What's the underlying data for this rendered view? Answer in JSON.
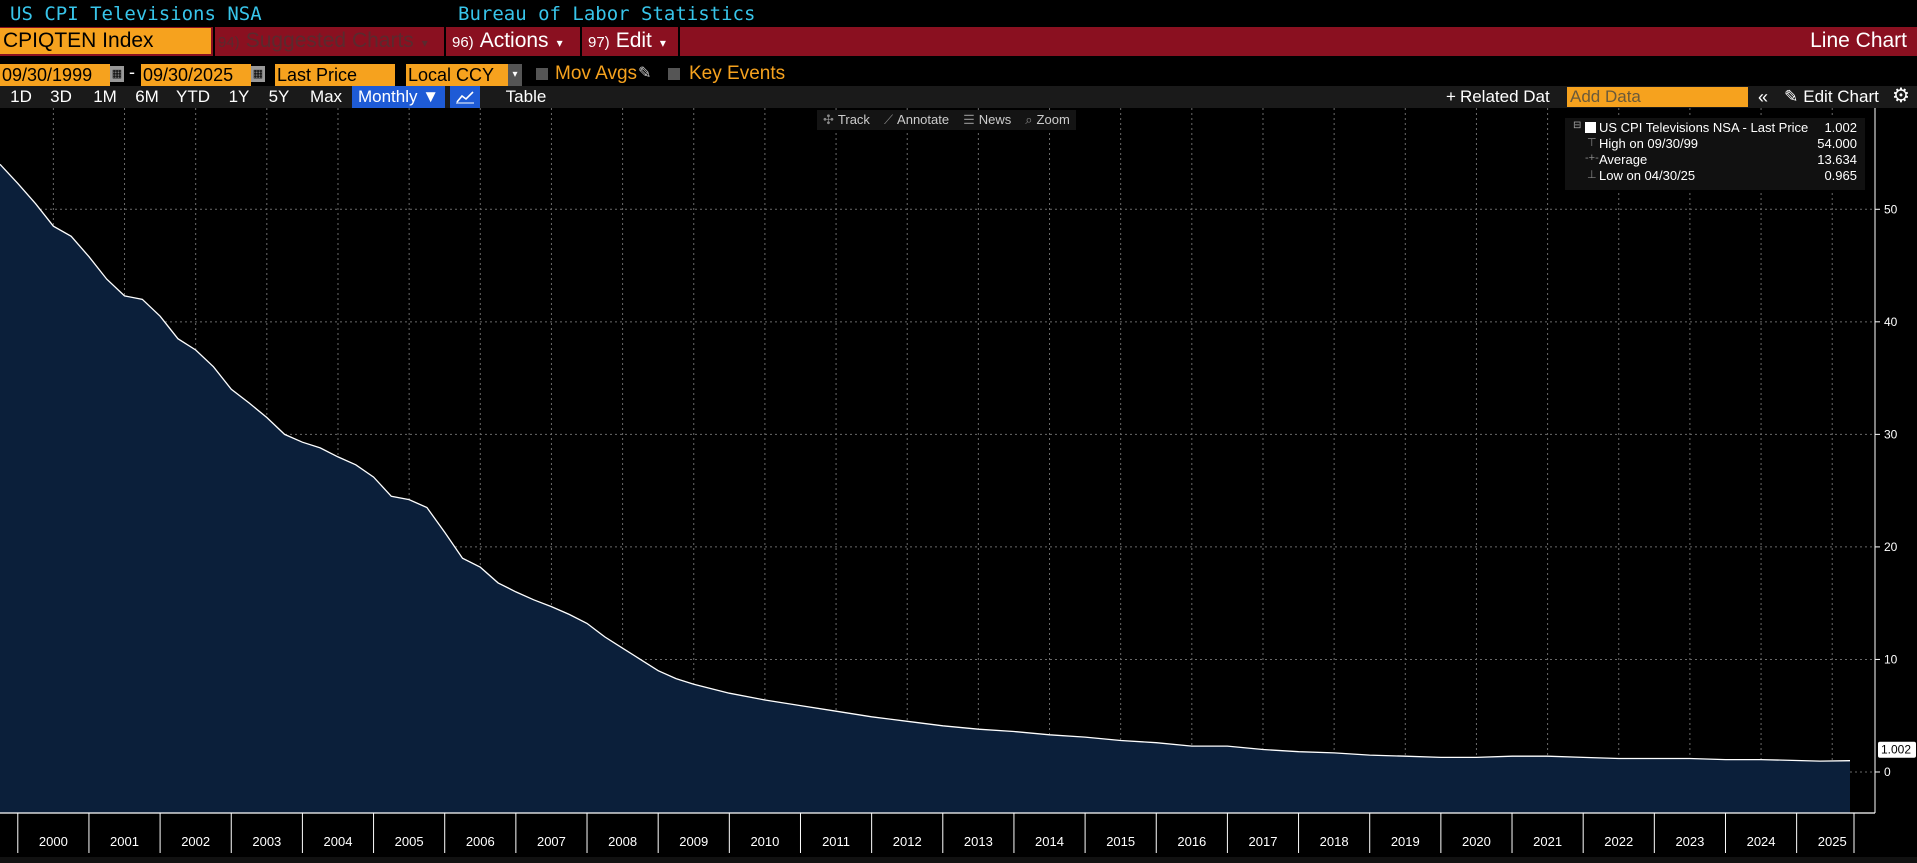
{
  "header": {
    "security_name": "US CPI Televisions NSA",
    "source": "Bureau of Labor Statistics"
  },
  "menubar": {
    "ticker": "CPIQTEN Index",
    "suggested_num": "94)",
    "suggested_label": "Suggested Charts",
    "actions_num": "96)",
    "actions_label": "Actions",
    "edit_num": "97)",
    "edit_label": "Edit",
    "chart_type": "Line Chart"
  },
  "options": {
    "start_date": "09/30/1999",
    "date_separator": "-",
    "end_date": "09/30/2025",
    "field": "Last Price",
    "currency": "Local CCY",
    "mov_avgs": "Mov Avgs",
    "key_events": "Key Events"
  },
  "periods": [
    "1D",
    "3D",
    "1M",
    "6M",
    "YTD",
    "1Y",
    "5Y",
    "Max"
  ],
  "frequency": "Monthly ▼",
  "table_label": "Table",
  "related_label": "Related Dat",
  "add_data_placeholder": "Add Data",
  "edit_chart_label": "Edit Chart",
  "tools": {
    "track": "Track",
    "annotate": "Annotate",
    "news": "News",
    "zoom": "Zoom"
  },
  "legend": {
    "series_label": "US CPI Televisions NSA - Last Price",
    "series_value": "1.002",
    "high_label": "High on 09/30/99",
    "high_value": "54.000",
    "avg_label": "Average",
    "avg_value": "13.634",
    "low_label": "Low on 04/30/25",
    "low_value": "0.965"
  },
  "chart_data": {
    "type": "area",
    "line_color": "#ffffff",
    "fill_color": "#0b1f3a",
    "ylim": [
      -4,
      59
    ],
    "yticks": [
      0,
      10,
      20,
      30,
      40,
      50
    ],
    "x_start": 1999.75,
    "x_end": 2025.75,
    "xticks": [
      "2000",
      "2001",
      "2002",
      "2003",
      "2004",
      "2005",
      "2006",
      "2007",
      "2008",
      "2009",
      "2010",
      "2011",
      "2012",
      "2013",
      "2014",
      "2015",
      "2016",
      "2017",
      "2018",
      "2019",
      "2020",
      "2021",
      "2022",
      "2023",
      "2024",
      "2025"
    ],
    "last_value_label": "1.002",
    "x": [
      1999.75,
      2000.0,
      2000.25,
      2000.5,
      2000.75,
      2001.0,
      2001.25,
      2001.5,
      2001.75,
      2002.0,
      2002.25,
      2002.5,
      2002.75,
      2003.0,
      2003.25,
      2003.5,
      2003.75,
      2004.0,
      2004.25,
      2004.5,
      2004.75,
      2005.0,
      2005.25,
      2005.5,
      2005.75,
      2006.0,
      2006.25,
      2006.5,
      2006.75,
      2007.0,
      2007.25,
      2007.5,
      2007.75,
      2008.0,
      2008.25,
      2008.5,
      2008.75,
      2009.0,
      2009.25,
      2009.5,
      2009.75,
      2010.0,
      2010.5,
      2011.0,
      2011.5,
      2012.0,
      2012.5,
      2013.0,
      2013.5,
      2014.0,
      2014.5,
      2015.0,
      2015.5,
      2016.0,
      2016.5,
      2017.0,
      2017.5,
      2018.0,
      2018.5,
      2019.0,
      2019.5,
      2020.0,
      2020.5,
      2021.0,
      2021.5,
      2022.0,
      2022.5,
      2023.0,
      2023.5,
      2024.0,
      2024.5,
      2025.0,
      2025.33,
      2025.75
    ],
    "y": [
      54.0,
      52.3,
      50.5,
      48.5,
      47.6,
      45.8,
      43.8,
      42.3,
      42.0,
      40.5,
      38.5,
      37.5,
      36.0,
      34.0,
      32.8,
      31.5,
      30.0,
      29.3,
      28.8,
      28.0,
      27.3,
      26.2,
      24.5,
      24.2,
      23.5,
      21.3,
      19.0,
      18.2,
      16.8,
      16.0,
      15.3,
      14.7,
      14.0,
      13.2,
      12.0,
      11.0,
      10.0,
      9.0,
      8.3,
      7.8,
      7.4,
      7.0,
      6.4,
      5.9,
      5.4,
      4.9,
      4.5,
      4.1,
      3.8,
      3.6,
      3.3,
      3.1,
      2.8,
      2.6,
      2.3,
      2.3,
      2.0,
      1.8,
      1.7,
      1.5,
      1.4,
      1.3,
      1.3,
      1.4,
      1.4,
      1.3,
      1.2,
      1.2,
      1.2,
      1.1,
      1.1,
      1.02,
      0.965,
      1.002
    ]
  }
}
